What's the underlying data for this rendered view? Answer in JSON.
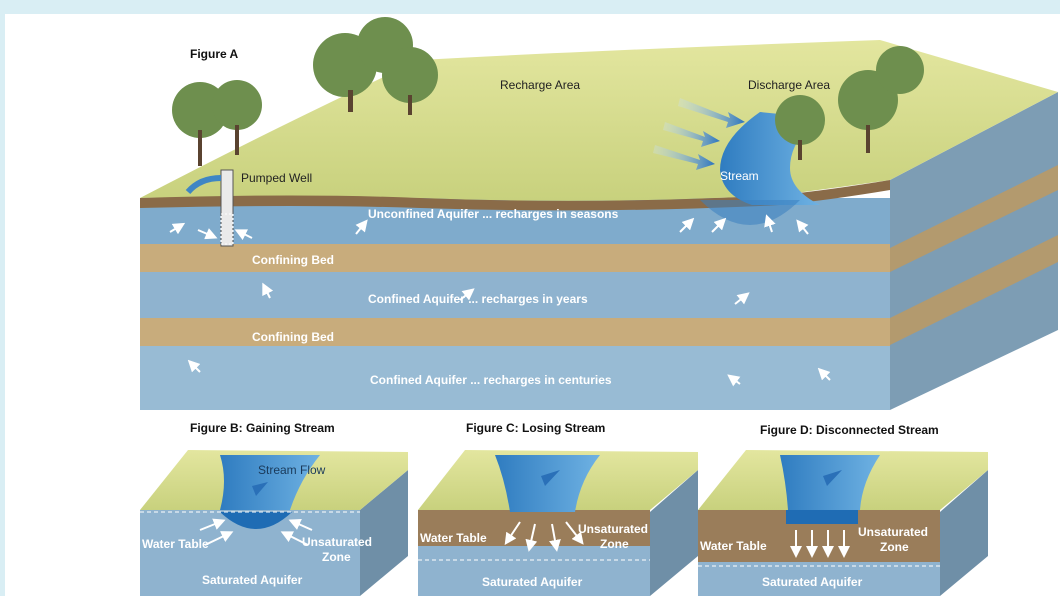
{
  "figureA": {
    "title": "Figure A",
    "recharge": "Recharge Area",
    "discharge": "Discharge Area",
    "well": "Pumped Well",
    "stream": "Stream",
    "layers": [
      "Unconfined Aquifer ... recharges in seasons",
      "Confining Bed",
      "Confined Aquifer ... recharges in years",
      "Confining Bed",
      "Confined Aquifer ... recharges in centuries"
    ]
  },
  "figureB": {
    "title": "Figure B: Gaining Stream",
    "flow": "Stream Flow",
    "waterTable": "Water Table",
    "unsat1": "Unsaturated",
    "unsat2": "Zone",
    "saturated": "Saturated Aquifer"
  },
  "figureC": {
    "title": "Figure C: Losing Stream",
    "waterTable": "Water Table",
    "unsat1": "Unsaturated",
    "unsat2": "Zone",
    "saturated": "Saturated Aquifer"
  },
  "figureD": {
    "title": "Figure D: Disconnected Stream",
    "waterTable": "Water Table",
    "unsat1": "Unsaturated",
    "unsat2": "Zone",
    "saturated": "Saturated Aquifer"
  },
  "colors": {
    "background": "#d9eef4",
    "land": "#d7dc8f",
    "aquifer": "#8fb6d0",
    "water": "#3f86c4",
    "confiningBed": "#c5a97a"
  }
}
